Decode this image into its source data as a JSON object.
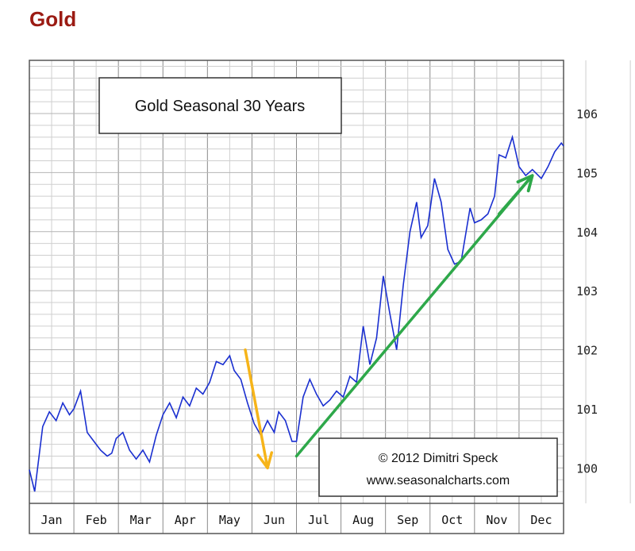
{
  "page_heading": "Gold",
  "colors": {
    "heading": "#9b1b13",
    "series": "#1a2fd0",
    "grid": "#cfcfcf",
    "arrow_down": "#f6b419",
    "arrow_up": "#2ea84a"
  },
  "chart_data": {
    "type": "line",
    "title": "Gold Seasonal 30 Years",
    "xlabel": "",
    "ylabel": "",
    "y_position": "right",
    "ylim": [
      99.4,
      106.9
    ],
    "yticks": [
      100,
      101,
      102,
      103,
      104,
      105,
      106
    ],
    "ytick_labels": [
      "100",
      "101",
      "102",
      "103",
      "104",
      "105",
      "106"
    ],
    "x_categories": [
      "Jan",
      "Feb",
      "Mar",
      "Apr",
      "May",
      "Jun",
      "Jul",
      "Aug",
      "Sep",
      "Oct",
      "Nov",
      "Dec"
    ],
    "grid": true,
    "annotation": {
      "line1": "© 2012  Dimitri Speck",
      "line2": "www.seasonalcharts.com"
    },
    "series": [
      {
        "color": "#1a2fd0",
        "x": [
          0.0,
          0.12,
          0.3,
          0.45,
          0.6,
          0.75,
          0.9,
          1.0,
          1.15,
          1.3,
          1.45,
          1.6,
          1.75,
          1.85,
          1.95,
          2.1,
          2.25,
          2.4,
          2.55,
          2.7,
          2.85,
          3.0,
          3.15,
          3.3,
          3.45,
          3.6,
          3.75,
          3.9,
          4.05,
          4.2,
          4.35,
          4.5,
          4.6,
          4.75,
          4.9,
          5.05,
          5.2,
          5.35,
          5.5,
          5.6,
          5.75,
          5.9,
          6.0,
          6.15,
          6.3,
          6.45,
          6.6,
          6.75,
          6.9,
          7.05,
          7.2,
          7.35,
          7.5,
          7.65,
          7.8,
          7.95,
          8.1,
          8.25,
          8.4,
          8.55,
          8.7,
          8.8,
          8.95,
          9.1,
          9.25,
          9.4,
          9.55,
          9.7,
          9.8,
          9.9,
          10.0,
          10.15,
          10.3,
          10.45,
          10.55,
          10.7,
          10.85,
          11.0,
          11.15,
          11.3,
          11.5,
          11.65,
          11.8,
          11.95,
          12.0
        ],
        "y": [
          99.97,
          99.6,
          100.7,
          100.95,
          100.8,
          101.1,
          100.9,
          101.0,
          101.3,
          100.6,
          100.45,
          100.3,
          100.2,
          100.25,
          100.5,
          100.6,
          100.3,
          100.15,
          100.3,
          100.1,
          100.55,
          100.9,
          101.1,
          100.85,
          101.2,
          101.05,
          101.35,
          101.25,
          101.45,
          101.8,
          101.75,
          101.9,
          101.65,
          101.5,
          101.1,
          100.75,
          100.55,
          100.8,
          100.6,
          100.95,
          100.8,
          100.45,
          100.45,
          101.2,
          101.5,
          101.25,
          101.05,
          101.15,
          101.3,
          101.2,
          101.55,
          101.45,
          102.4,
          101.75,
          102.2,
          103.25,
          102.6,
          102.0,
          103.1,
          104.0,
          104.5,
          103.9,
          104.1,
          104.9,
          104.5,
          103.7,
          103.45,
          103.5,
          103.95,
          104.4,
          104.15,
          104.2,
          104.3,
          104.6,
          105.3,
          105.25,
          105.6,
          105.1,
          104.95,
          105.05,
          104.9,
          105.1,
          105.35,
          105.5,
          105.45
        ]
      }
    ],
    "arrows": [
      {
        "color": "#f6b419",
        "from": {
          "x": 4.85,
          "y": 102.0
        },
        "to": {
          "x": 5.35,
          "y": 100.0
        }
      },
      {
        "color": "#2ea84a",
        "from": {
          "x": 6.0,
          "y": 100.2
        },
        "to": {
          "x": 11.3,
          "y": 104.95
        }
      },
      {
        "color": "#2ea84a",
        "from": {
          "x": 10.55,
          "y": 104.3
        },
        "to": {
          "x": 11.3,
          "y": 104.95
        }
      }
    ]
  }
}
